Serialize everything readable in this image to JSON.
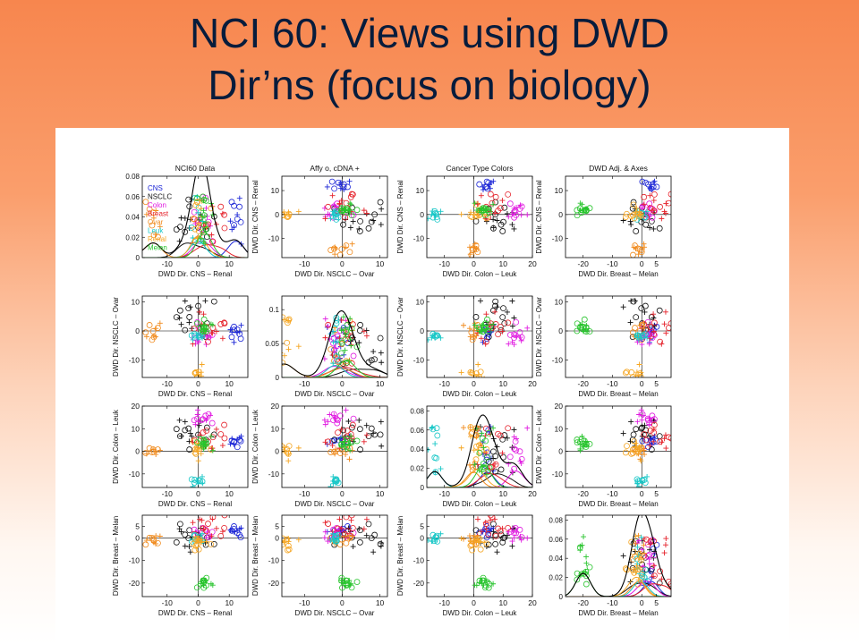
{
  "slide": {
    "title_line1": "NCI 60:  Views using DWD",
    "title_line2": "Dir’ns (focus on biology)"
  },
  "colors": {
    "CNS": "#1b25d6",
    "NSCLC": "#111111",
    "Colon": "#e01ae0",
    "Breast": "#e5222b",
    "Ovar": "#f08a1c",
    "Leuk": "#18c7c7",
    "Renal": "#f5a623",
    "Melan": "#27c42c"
  },
  "legend": {
    "entries": [
      "CNS",
      "NSCLC",
      "Colon",
      "Breast",
      "Ovar",
      "Leuk",
      "Renal",
      "Melan"
    ]
  },
  "column_titles": [
    "NCI60 Data",
    "Affy o,  cDNA +",
    "Cancer Type Colors",
    "DWD Adj. & Axes"
  ],
  "directions": [
    {
      "label": "DWD Dir. CNS – Renal",
      "range": [
        -18,
        16
      ],
      "ticks": [
        -10,
        0,
        10
      ]
    },
    {
      "label": "DWD Dir. NSCLC – Ovar",
      "range": [
        -16,
        12
      ],
      "ticks": [
        -10,
        0,
        10
      ]
    },
    {
      "label": "DWD Dir. Colon – Leuk",
      "range": [
        -16,
        20
      ],
      "ticks": [
        -10,
        0,
        10,
        20
      ]
    },
    {
      "label": "DWD Dir. Breast – Melan",
      "range": [
        -26,
        10
      ],
      "ticks": [
        -20,
        -10,
        0,
        5
      ]
    }
  ],
  "density_axes": [
    {
      "ylim": [
        0,
        0.08
      ],
      "ticks": [
        "0",
        "0.02",
        "0.04",
        "0.06",
        "0.08"
      ]
    },
    {
      "ylim": [
        0,
        0.12
      ],
      "ticks": [
        "0",
        "0.05",
        "0.1"
      ]
    },
    {
      "ylim": [
        0,
        0.085
      ],
      "ticks": [
        "0",
        "0.02",
        "0.04",
        "0.06",
        "0.08"
      ]
    },
    {
      "ylim": [
        0,
        0.085
      ],
      "ticks": [
        "0",
        "0.02",
        "0.04",
        "0.06",
        "0.08"
      ]
    }
  ],
  "chart_data": {
    "type": "scatter",
    "layout": "4x4 scatterplot matrix; diagonal panels show kernel density curves with jittered points",
    "variables": [
      "DWD Dir. CNS – Renal",
      "DWD Dir. NSCLC – Ovar",
      "DWD Dir. Colon – Leuk",
      "DWD Dir. Breast – Melan"
    ],
    "groups": [
      {
        "name": "CNS",
        "color": "#1b25d6",
        "center": [
          12,
          0,
          5,
          3
        ],
        "spread": 1.5,
        "n": 6
      },
      {
        "name": "NSCLC",
        "color": "#111111",
        "center": [
          0,
          5,
          8,
          -1
        ],
        "spread": 3.5,
        "n": 9
      },
      {
        "name": "Colon",
        "color": "#e01ae0",
        "center": [
          1,
          -2,
          14,
          1
        ],
        "spread": 2.0,
        "n": 7
      },
      {
        "name": "Breast",
        "color": "#e5222b",
        "center": [
          4,
          0,
          6,
          5
        ],
        "spread": 3.0,
        "n": 8
      },
      {
        "name": "Ovar",
        "color": "#f08a1c",
        "center": [
          -15,
          0,
          -1,
          -1
        ],
        "spread": 1.8,
        "n": 6
      },
      {
        "name": "Leuk",
        "color": "#18c7c7",
        "center": [
          0,
          -2,
          -13,
          0
        ],
        "spread": 1.2,
        "n": 6
      },
      {
        "name": "Renal",
        "color": "#f5a623",
        "center": [
          0,
          -15,
          1,
          -2
        ],
        "spread": 1.5,
        "n": 8
      },
      {
        "name": "Melan",
        "color": "#27c42c",
        "center": [
          2,
          1,
          3,
          -20
        ],
        "spread": 1.3,
        "n": 9
      }
    ],
    "marker_by_platform": {
      "Affy": "o",
      "cDNA": "+"
    }
  }
}
